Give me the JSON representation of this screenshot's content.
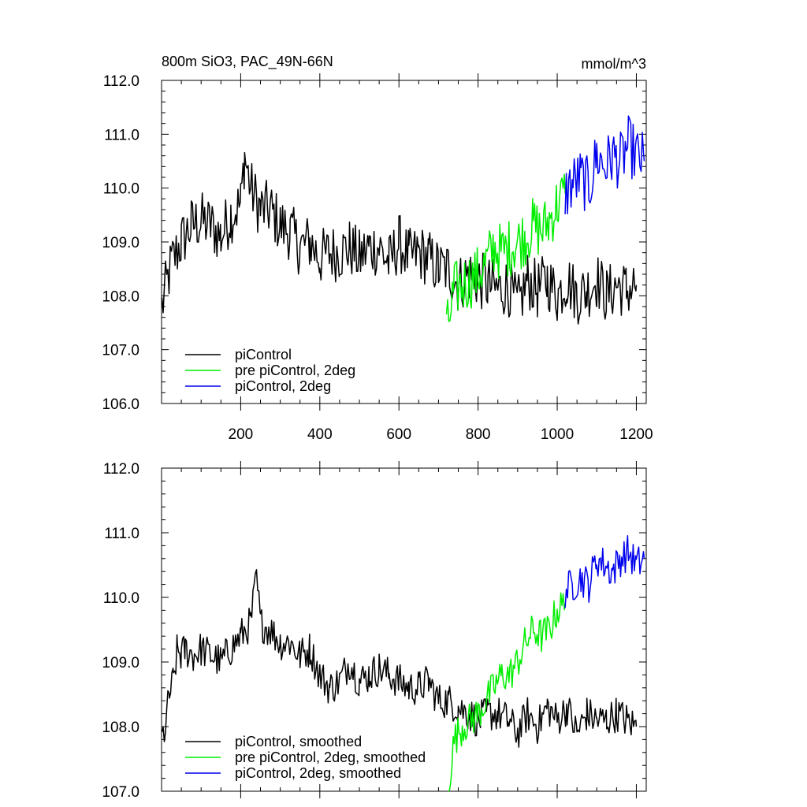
{
  "chart_data": [
    {
      "type": "line",
      "title": "800m SiO3, PAC_49N-66N",
      "units": "mmol/m^3",
      "xlim": [
        0,
        1225
      ],
      "ylim": [
        106.0,
        112.0
      ],
      "x_ticks": [
        200,
        400,
        600,
        800,
        1000,
        1200
      ],
      "y_ticks": [
        "112.0",
        "111.0",
        "110.0",
        "109.0",
        "108.0",
        "107.0",
        "106.0"
      ],
      "grid": false,
      "legend_position": "bottom-left",
      "series": [
        {
          "name": "piControl",
          "color": "#000000",
          "x": [
            1,
            25,
            50,
            75,
            100,
            125,
            150,
            175,
            200,
            210,
            225,
            250,
            275,
            300,
            325,
            350,
            375,
            400,
            425,
            450,
            475,
            500,
            525,
            550,
            575,
            600,
            625,
            650,
            675,
            700,
            725,
            750,
            775,
            800,
            825,
            850,
            875,
            900,
            925,
            950,
            975,
            1000,
            1025,
            1050,
            1075,
            1100,
            1125,
            1150,
            1175,
            1200
          ],
          "y": [
            107.8,
            108.6,
            109.0,
            109.3,
            109.4,
            109.3,
            109.1,
            109.5,
            109.7,
            110.6,
            110.0,
            109.6,
            109.6,
            109.3,
            109.2,
            108.9,
            109.0,
            108.7,
            108.8,
            108.8,
            108.9,
            108.7,
            108.9,
            108.9,
            108.6,
            109.0,
            108.7,
            108.8,
            108.7,
            108.5,
            108.5,
            108.2,
            108.4,
            108.3,
            108.2,
            108.1,
            108.2,
            107.8,
            108.3,
            108.1,
            108.3,
            108.0,
            108.3,
            108.0,
            108.1,
            108.3,
            108.0,
            108.2,
            108.1,
            108.2
          ]
        },
        {
          "name": "pre piControl, 2deg",
          "color": "#00ee00",
          "x": [
            720,
            740,
            760,
            780,
            800,
            820,
            840,
            860,
            880,
            900,
            920,
            940,
            960,
            980,
            1000,
            1020
          ],
          "y": [
            107.3,
            108.1,
            108.2,
            108.3,
            108.4,
            108.6,
            108.9,
            108.8,
            108.9,
            109.0,
            109.1,
            109.3,
            109.2,
            109.4,
            109.7,
            109.9
          ]
        },
        {
          "name": "piControl, 2deg",
          "color": "#0000ee",
          "x": [
            1020,
            1040,
            1060,
            1080,
            1100,
            1120,
            1140,
            1160,
            1180,
            1200,
            1220
          ],
          "y": [
            109.9,
            110.1,
            110.2,
            110.0,
            110.6,
            110.4,
            110.6,
            110.5,
            110.8,
            110.6,
            110.5
          ]
        }
      ]
    },
    {
      "type": "line",
      "title": "",
      "xlim": [
        0,
        1225
      ],
      "ylim": [
        107.0,
        112.0
      ],
      "y_ticks": [
        "112.0",
        "111.0",
        "110.0",
        "109.0",
        "108.0",
        "107.0"
      ],
      "grid": false,
      "legend_position": "bottom-left",
      "series": [
        {
          "name": "piControl, smoothed",
          "color": "#000000",
          "x": [
            1,
            10,
            20,
            30,
            40,
            50,
            60,
            80,
            100,
            125,
            150,
            175,
            200,
            225,
            240,
            250,
            275,
            300,
            325,
            350,
            375,
            400,
            425,
            450,
            475,
            500,
            525,
            550,
            575,
            600,
            625,
            650,
            675,
            700,
            725,
            750,
            775,
            800,
            825,
            850,
            875,
            900,
            925,
            950,
            975,
            1000,
            1025,
            1050,
            1075,
            1100,
            1125,
            1150,
            1175,
            1200
          ],
          "y": [
            107.8,
            108.0,
            108.5,
            108.7,
            109.2,
            109.1,
            109.2,
            109.1,
            109.2,
            109.1,
            109.0,
            109.2,
            109.4,
            109.6,
            110.3,
            109.6,
            109.5,
            109.3,
            109.3,
            109.1,
            109.2,
            108.8,
            108.6,
            108.7,
            109.0,
            108.7,
            108.8,
            108.9,
            108.8,
            108.7,
            108.6,
            108.6,
            108.7,
            108.4,
            108.4,
            108.3,
            108.2,
            108.1,
            108.2,
            108.2,
            108.1,
            107.9,
            108.2,
            108.0,
            108.3,
            108.1,
            108.3,
            107.9,
            108.2,
            108.1,
            108.1,
            108.2,
            108.1,
            108.0
          ]
        },
        {
          "name": "pre piControl, 2deg, smoothed",
          "color": "#00ee00",
          "x": [
            725,
            740,
            760,
            780,
            800,
            820,
            840,
            860,
            880,
            900,
            920,
            940,
            960,
            980,
            1000,
            1020
          ],
          "y": [
            107.1,
            107.8,
            108.0,
            108.1,
            108.2,
            108.4,
            108.6,
            108.8,
            108.8,
            109.0,
            109.3,
            109.5,
            109.4,
            109.5,
            109.8,
            109.9
          ]
        },
        {
          "name": "piControl, 2deg, smoothed",
          "color": "#0000ee",
          "x": [
            1020,
            1040,
            1060,
            1080,
            1100,
            1120,
            1140,
            1160,
            1180,
            1200,
            1220
          ],
          "y": [
            110.1,
            110.2,
            110.3,
            110.2,
            110.6,
            110.5,
            110.4,
            110.6,
            110.7,
            110.5,
            110.6
          ]
        }
      ]
    }
  ]
}
